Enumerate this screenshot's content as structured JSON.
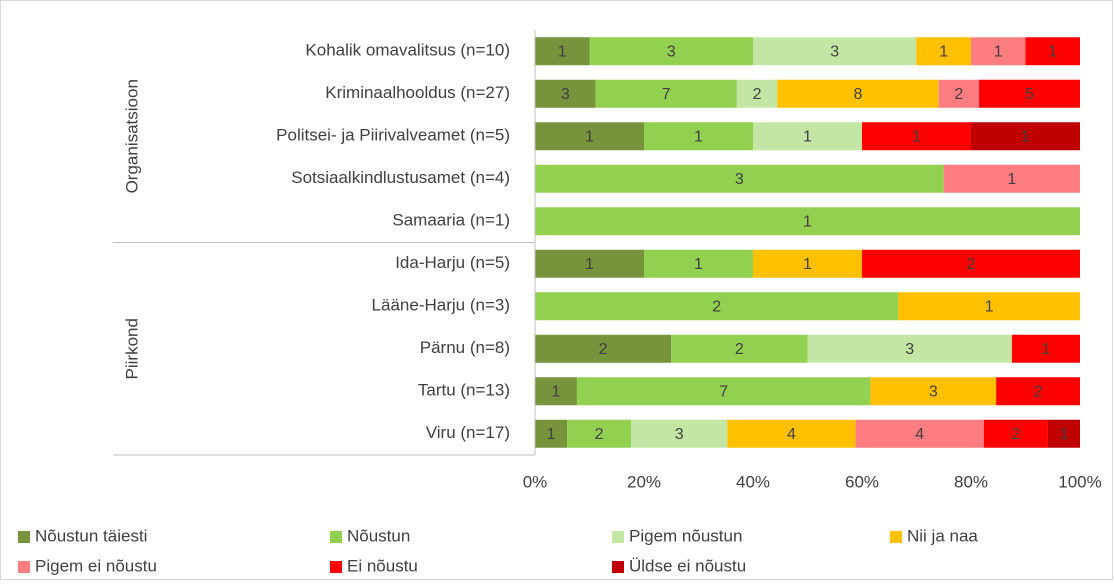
{
  "chart_data": {
    "type": "bar",
    "orientation": "horizontal",
    "stack": "percent",
    "groups": [
      {
        "name": "Organisatsioon",
        "categories": [
          "Kohalik omavalitsus (n=10)",
          "Kriminaalhooldus (n=27)",
          "Politsei- ja Piirivalveamet (n=5)",
          "Sotsiaalkindlustusamet (n=4)",
          "Samaaria (n=1)"
        ]
      },
      {
        "name": "Piirkond",
        "categories": [
          "Ida-Harju (n=5)",
          "Lääne-Harju (n=3)",
          "Pärnu (n=8)",
          "Tartu (n=13)",
          "Viru (n=17)"
        ]
      }
    ],
    "series": [
      {
        "name": "Nõustun täiesti",
        "color": "#77933c",
        "values": [
          1,
          3,
          1,
          null,
          null,
          1,
          null,
          2,
          1,
          1
        ]
      },
      {
        "name": "Nõustun",
        "color": "#92d050",
        "values": [
          3,
          7,
          1,
          3,
          1,
          1,
          2,
          2,
          7,
          2
        ]
      },
      {
        "name": "Pigem nõustun",
        "color": "#c4e6a4",
        "values": [
          3,
          2,
          1,
          null,
          null,
          null,
          null,
          3,
          null,
          3
        ]
      },
      {
        "name": "Nii ja naa",
        "color": "#ffc000",
        "values": [
          1,
          8,
          null,
          null,
          null,
          1,
          1,
          null,
          3,
          4
        ]
      },
      {
        "name": "Pigem ei nõustu",
        "color": "#ff7c80",
        "values": [
          1,
          2,
          null,
          1,
          null,
          null,
          null,
          null,
          null,
          4
        ]
      },
      {
        "name": "Ei nõustu",
        "color": "#ff0000",
        "values": [
          1,
          5,
          1,
          null,
          null,
          2,
          null,
          1,
          2,
          2
        ]
      },
      {
        "name": "Üldse ei nõustu",
        "color": "#c00000",
        "values": [
          null,
          null,
          1,
          null,
          null,
          null,
          null,
          null,
          null,
          1
        ]
      }
    ],
    "xlim": [
      0,
      100
    ],
    "xticks": [
      {
        "value": 0,
        "label": "0%"
      },
      {
        "value": 20,
        "label": "20%"
      },
      {
        "value": 40,
        "label": "40%"
      },
      {
        "value": 60,
        "label": "60%"
      },
      {
        "value": 80,
        "label": "80%"
      },
      {
        "value": 100,
        "label": "100%"
      }
    ],
    "grid": false,
    "legend": "bottom"
  }
}
